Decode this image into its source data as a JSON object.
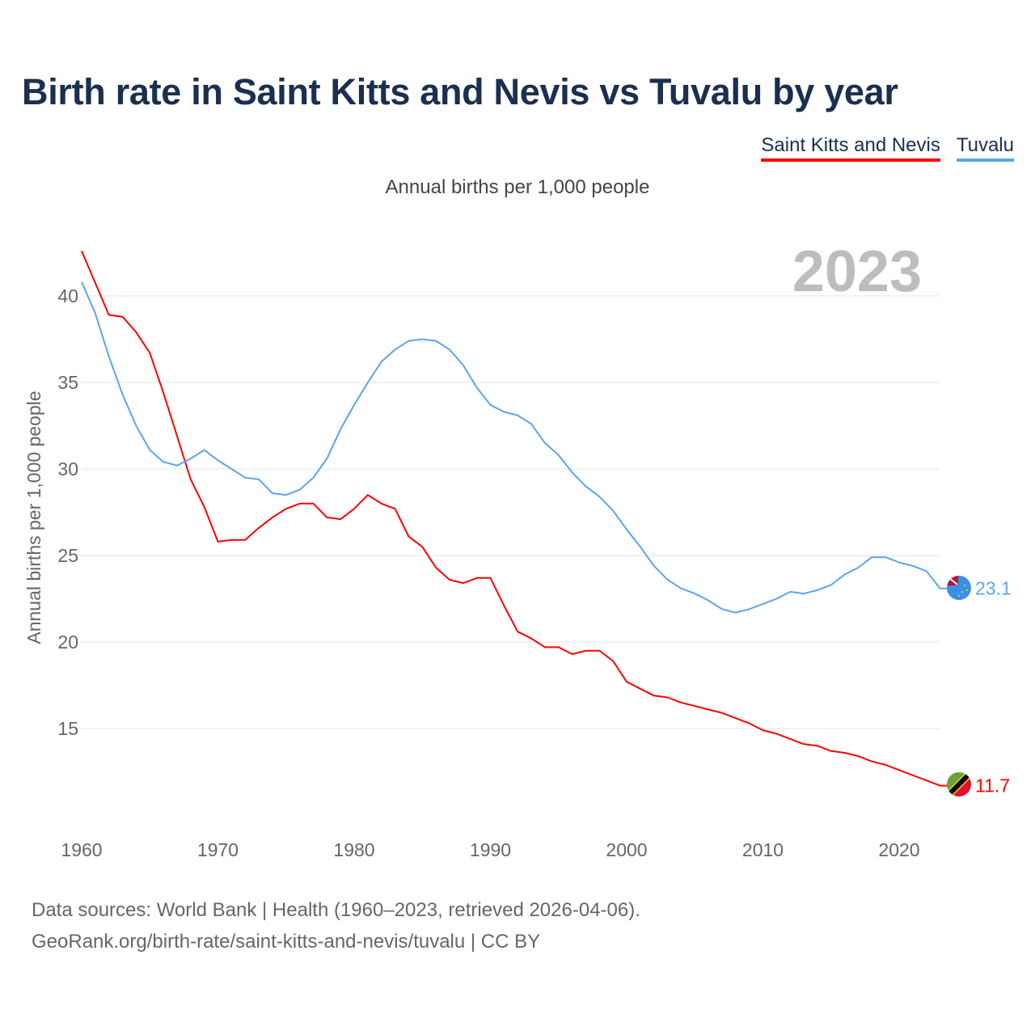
{
  "chart_data": {
    "type": "line",
    "title": "Birth rate in Saint Kitts and Nevis vs Tuvalu by year",
    "subtitle": "Annual births per 1,000 people",
    "ylabel": "Annual births per 1,000 people",
    "xlabel": "",
    "year_label": "2023",
    "xlim": [
      1960,
      2023
    ],
    "ylim": [
      10,
      43
    ],
    "x_ticks": [
      1960,
      1970,
      1980,
      1990,
      2000,
      2010,
      2020
    ],
    "y_ticks": [
      15,
      20,
      25,
      30,
      35,
      40
    ],
    "grid": true,
    "legend_position": "top-right",
    "x": [
      1960,
      1961,
      1962,
      1963,
      1964,
      1965,
      1966,
      1967,
      1968,
      1969,
      1970,
      1971,
      1972,
      1973,
      1974,
      1975,
      1976,
      1977,
      1978,
      1979,
      1980,
      1981,
      1982,
      1983,
      1984,
      1985,
      1986,
      1987,
      1988,
      1989,
      1990,
      1991,
      1992,
      1993,
      1994,
      1995,
      1996,
      1997,
      1998,
      1999,
      2000,
      2001,
      2002,
      2003,
      2004,
      2005,
      2006,
      2007,
      2008,
      2009,
      2010,
      2011,
      2012,
      2013,
      2014,
      2015,
      2016,
      2017,
      2018,
      2019,
      2020,
      2021,
      2022,
      2023
    ],
    "series": [
      {
        "name": "Saint Kitts and Nevis",
        "color": "#ff0000",
        "end_label": "11.7",
        "values": [
          42.6,
          40.75,
          38.9,
          38.8,
          37.9,
          36.7,
          34.4,
          31.9,
          29.4,
          27.8,
          25.8,
          25.9,
          25.9,
          26.6,
          27.2,
          27.7,
          28.0,
          28.0,
          27.2,
          27.1,
          27.7,
          28.5,
          28.0,
          27.7,
          26.1,
          25.5,
          24.3,
          23.6,
          23.4,
          23.7,
          23.7,
          22.1,
          20.6,
          20.2,
          19.7,
          19.7,
          19.3,
          19.5,
          19.5,
          18.9,
          17.7,
          17.3,
          16.9,
          16.8,
          16.5,
          16.3,
          16.1,
          15.9,
          15.6,
          15.3,
          14.9,
          14.7,
          14.4,
          14.1,
          14.0,
          13.7,
          13.6,
          13.4,
          13.1,
          12.9,
          12.6,
          12.3,
          12.0,
          11.7
        ]
      },
      {
        "name": "Tuvalu",
        "color": "#5aa5f0",
        "end_label": "23.1",
        "values": [
          40.8,
          39.0,
          36.5,
          34.3,
          32.5,
          31.1,
          30.4,
          30.2,
          30.6,
          31.1,
          30.5,
          30.0,
          29.5,
          29.4,
          28.6,
          28.5,
          28.8,
          29.5,
          30.6,
          32.3,
          33.7,
          35.0,
          36.2,
          36.9,
          37.4,
          37.5,
          37.4,
          36.9,
          36.0,
          34.7,
          33.7,
          33.3,
          33.1,
          32.6,
          31.5,
          30.8,
          29.8,
          29.0,
          28.4,
          27.6,
          26.5,
          25.5,
          24.4,
          23.6,
          23.1,
          22.8,
          22.4,
          21.9,
          21.7,
          21.9,
          22.2,
          22.5,
          22.9,
          22.8,
          23.0,
          23.3,
          23.9,
          24.3,
          24.9,
          24.9,
          24.6,
          24.4,
          24.1,
          23.1
        ]
      }
    ]
  },
  "footer": {
    "line1": "Data sources: World Bank | Health (1960–2023, retrieved 2026-04-06).",
    "line2": "GeoRank.org/birth-rate/saint-kitts-and-nevis/tuvalu | CC BY"
  }
}
